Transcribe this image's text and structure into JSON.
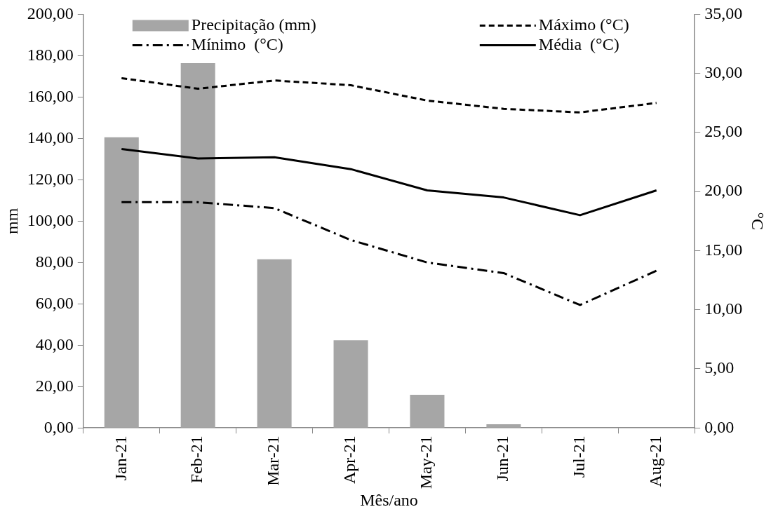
{
  "chart_data": {
    "type": "bar",
    "xlabel": "Mês/ano",
    "ylabel": "mm",
    "y2label": "°C",
    "categories": [
      "Jan-21",
      "Feb-21",
      "Mar-21",
      "Apr-21",
      "May-21",
      "Jun-21",
      "Jul-21",
      "Aug-21"
    ],
    "series": [
      {
        "name": "Precipitação (mm)",
        "color": "#a6a6a6",
        "values": [
          140.5,
          176.4,
          81.5,
          42.4,
          16,
          1.8,
          0,
          0
        ]
      },
      {
        "name": "Máximo (°C)",
        "type": "line",
        "axis": "y2",
        "color": "#000000",
        "line_style": "dashed",
        "values": [
          29.6,
          28.7,
          29.4,
          29.0,
          27.7,
          27.0,
          26.7,
          27.5
        ]
      },
      {
        "name": "Mínimo  (°C)",
        "type": "line",
        "axis": "y2",
        "color": "#000000",
        "line_style": "dashdot",
        "values": [
          19.1,
          19.1,
          18.6,
          15.9,
          14.0,
          13.1,
          10.4,
          13.3
        ]
      },
      {
        "name": "Média  (°C)",
        "type": "line",
        "axis": "y2",
        "color": "#000000",
        "line_style": "solid",
        "values": [
          23.6,
          22.8,
          22.9,
          21.9,
          20.1,
          19.5,
          18.0,
          20.1
        ]
      }
    ],
    "ylim": [
      0,
      200
    ],
    "yticks": [
      {
        "value": 0,
        "label": "0,00"
      },
      {
        "value": 20,
        "label": "20,00"
      },
      {
        "value": 40,
        "label": "40,00"
      },
      {
        "value": 60,
        "label": "60,00"
      },
      {
        "value": 80,
        "label": "80,00"
      },
      {
        "value": 100,
        "label": "100,00"
      },
      {
        "value": 120,
        "label": "120,00"
      },
      {
        "value": 140,
        "label": "140,00"
      },
      {
        "value": 160,
        "label": "160,00"
      },
      {
        "value": 180,
        "label": "180,00"
      },
      {
        "value": 200,
        "label": "200,00"
      }
    ],
    "y2lim": [
      0,
      35
    ],
    "y2ticks": [
      {
        "value": 0,
        "label": "0,00"
      },
      {
        "value": 5,
        "label": "5,00"
      },
      {
        "value": 10,
        "label": "10,00"
      },
      {
        "value": 15,
        "label": "15,00"
      },
      {
        "value": 20,
        "label": "20,00"
      },
      {
        "value": 25,
        "label": "25,00"
      },
      {
        "value": 30,
        "label": "30,00"
      },
      {
        "value": 35,
        "label": "35,00"
      }
    ],
    "grid": false,
    "legend": "top",
    "marker": "none"
  }
}
